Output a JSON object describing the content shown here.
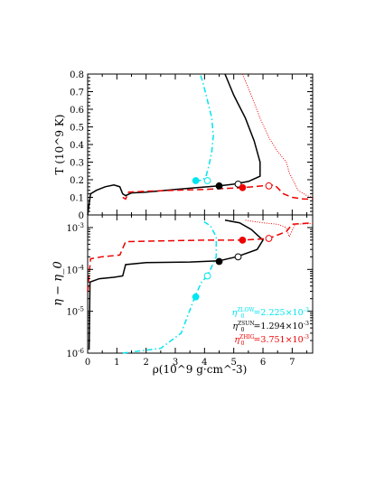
{
  "chart_data": [
    {
      "type": "line",
      "panel": "top",
      "ylabel": "T (10^9 K)",
      "xlim": [
        0,
        7.7
      ],
      "ylim": [
        0,
        0.8
      ],
      "yticks": [
        "0",
        "0.1",
        "0.2",
        "0.3",
        "0.4",
        "0.5",
        "0.6",
        "0.7",
        "0.8"
      ],
      "series": [
        {
          "id": "zlow",
          "color": "#00e5ee",
          "style": "dash-dot",
          "points": [
            [
              3.7,
              0.19
            ],
            [
              3.95,
              0.2
            ],
            [
              4.05,
              0.22
            ],
            [
              4.15,
              0.28
            ],
            [
              4.25,
              0.36
            ],
            [
              4.3,
              0.45
            ],
            [
              4.25,
              0.55
            ],
            [
              4.1,
              0.65
            ],
            [
              3.95,
              0.75
            ],
            [
              3.85,
              0.8
            ]
          ],
          "filled_marker": [
            3.7,
            0.195
          ],
          "open_marker": [
            4.1,
            0.195
          ]
        },
        {
          "id": "zsun",
          "color": "#000000",
          "style": "solid",
          "points": [
            [
              0,
              0
            ],
            [
              0.05,
              0.06
            ],
            [
              0.1,
              0.12
            ],
            [
              0.3,
              0.14
            ],
            [
              0.6,
              0.16
            ],
            [
              0.9,
              0.17
            ],
            [
              1.1,
              0.16
            ],
            [
              1.2,
              0.12
            ],
            [
              1.3,
              0.11
            ],
            [
              1.5,
              0.125
            ],
            [
              2.0,
              0.13
            ],
            [
              3.0,
              0.145
            ],
            [
              4.5,
              0.165
            ],
            [
              5.0,
              0.175
            ],
            [
              5.5,
              0.19
            ],
            [
              5.9,
              0.22
            ],
            [
              5.9,
              0.3
            ],
            [
              5.7,
              0.42
            ],
            [
              5.4,
              0.55
            ],
            [
              5.0,
              0.68
            ],
            [
              4.7,
              0.8
            ]
          ],
          "filled_marker": [
            4.5,
            0.165
          ],
          "open_marker": [
            5.15,
            0.175
          ]
        },
        {
          "id": "zhig",
          "color": "#ee0000",
          "style": "dashed",
          "points": [
            [
              1.2,
              0.1
            ],
            [
              1.3,
              0.09
            ],
            [
              1.35,
              0.11
            ],
            [
              1.4,
              0.13
            ],
            [
              2.0,
              0.135
            ],
            [
              3.0,
              0.14
            ],
            [
              4.0,
              0.145
            ],
            [
              5.3,
              0.155
            ],
            [
              6.0,
              0.165
            ],
            [
              6.4,
              0.17
            ],
            [
              6.7,
              0.12
            ],
            [
              7.0,
              0.1
            ],
            [
              7.4,
              0.09
            ],
            [
              7.7,
              0.09
            ]
          ],
          "filled_marker": [
            5.3,
            0.155
          ],
          "open_marker": [
            6.2,
            0.165
          ]
        },
        {
          "id": "zhig-dotted",
          "color": "#ee0000",
          "style": "dotted",
          "points": [
            [
              5.3,
              0.8
            ],
            [
              5.6,
              0.68
            ],
            [
              5.9,
              0.55
            ],
            [
              6.2,
              0.44
            ],
            [
              6.5,
              0.36
            ],
            [
              6.8,
              0.3
            ],
            [
              6.9,
              0.24
            ],
            [
              7.2,
              0.14
            ],
            [
              7.5,
              0.11
            ],
            [
              7.7,
              0.1
            ]
          ]
        }
      ]
    },
    {
      "type": "line",
      "panel": "bottom",
      "xlabel": "ρ(10^9 g·cm^-3)",
      "ylabel": "η − η_0",
      "yscale": "log",
      "xlim": [
        0,
        7.7
      ],
      "ylim": [
        1e-06,
        0.002
      ],
      "xticks": [
        "0",
        "1",
        "2",
        "3",
        "4",
        "5",
        "6",
        "7"
      ],
      "yticks": [
        "10^-6",
        "10^-5",
        "10^-4",
        "10^-3"
      ],
      "series": [
        {
          "id": "zlow",
          "color": "#00e5ee",
          "style": "dash-dot",
          "legend": "η0^ZLOW=2.225×10^-3",
          "points": [
            [
              1.2,
              1e-06
            ],
            [
              2.5,
              1.3e-06
            ],
            [
              3.2,
              3e-06
            ],
            [
              3.7,
              2.5e-05
            ],
            [
              3.9,
              5e-05
            ],
            [
              4.1,
              7e-05
            ],
            [
              4.4,
              0.0002
            ],
            [
              4.4,
              0.0006
            ],
            [
              4.2,
              0.0011
            ],
            [
              3.9,
              0.0015
            ]
          ],
          "filled_marker": [
            3.7,
            2.2e-05
          ],
          "open_marker": [
            4.1,
            7e-05
          ]
        },
        {
          "id": "zsun",
          "color": "#000000",
          "style": "solid",
          "legend": "η0^ZSUN=1.294×10^-3",
          "points": [
            [
              0.05,
              1.2e-06
            ],
            [
              0.08,
              5e-05
            ],
            [
              0.4,
              6e-05
            ],
            [
              0.9,
              6.5e-05
            ],
            [
              1.2,
              7e-05
            ],
            [
              1.3,
              0.00013
            ],
            [
              2.0,
              0.000145
            ],
            [
              3.5,
              0.00015
            ],
            [
              4.5,
              0.00016
            ],
            [
              5.1,
              0.0002
            ],
            [
              5.8,
              0.0003
            ],
            [
              6.0,
              0.0005
            ],
            [
              5.6,
              0.0009
            ],
            [
              5.2,
              0.0013
            ],
            [
              4.7,
              0.0015
            ]
          ],
          "filled_marker": [
            4.5,
            0.000155
          ],
          "open_marker": [
            5.15,
            0.0002
          ]
        },
        {
          "id": "zhig",
          "color": "#ee0000",
          "style": "dashed",
          "legend": "η0^ZHIG=3.751×10^-3",
          "points": [
            [
              0,
              3e-05
            ],
            [
              0.1,
              0.00018
            ],
            [
              0.5,
              0.0002
            ],
            [
              1.1,
              0.00022
            ],
            [
              1.3,
              0.00046
            ],
            [
              2.5,
              0.00048
            ],
            [
              4.0,
              0.0005
            ],
            [
              5.3,
              0.0005
            ],
            [
              6.2,
              0.00055
            ],
            [
              6.8,
              0.0008
            ],
            [
              7.0,
              0.0012
            ],
            [
              7.7,
              0.0013
            ]
          ],
          "filled_marker": [
            5.3,
            0.0005
          ],
          "open_marker": [
            6.2,
            0.00055
          ]
        },
        {
          "id": "zhig-dotted",
          "color": "#ee0000",
          "style": "dotted",
          "points": [
            [
              5.4,
              0.0015
            ],
            [
              6.0,
              0.0013
            ],
            [
              6.5,
              0.0012
            ],
            [
              6.8,
              0.001
            ],
            [
              6.9,
              0.0006
            ],
            [
              7.1,
              0.0012
            ],
            [
              7.7,
              0.00125
            ]
          ]
        }
      ]
    }
  ]
}
